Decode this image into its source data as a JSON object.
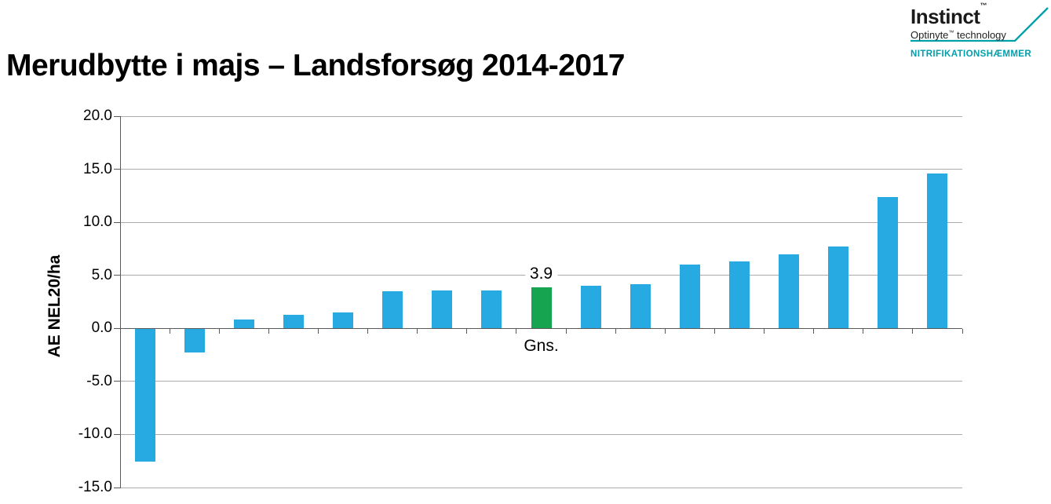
{
  "slide": {
    "title": "Merudbytte i majs – Landsforsøg 2014-2017"
  },
  "logo": {
    "brand": "Instinct",
    "brand_trademark": "™",
    "tech_brand": "Optinyte",
    "tech_trademark": "™",
    "tech_suffix": " technology",
    "tagline": "NITRIFIKATIONSHÆMMER",
    "accent_color": "#00A0AB"
  },
  "chart_data": {
    "type": "bar",
    "title": "Merudbytte i majs – Landsforsøg 2014-2017",
    "xlabel": "",
    "ylabel": "AE NEL20/ha",
    "ylim": [
      -15,
      20
    ],
    "grid": true,
    "legend": "none",
    "yticks": [
      "20.0",
      "15.0",
      "10.0",
      "5.0",
      "0.0",
      "-5.0",
      "-10.0",
      "-15.0"
    ],
    "ytick_values": [
      20,
      15,
      10,
      5,
      0,
      -5,
      -10,
      -15
    ],
    "values": [
      -12.5,
      -2.2,
      0.8,
      1.3,
      1.5,
      3.5,
      3.6,
      3.6,
      3.9,
      4.0,
      4.2,
      6.0,
      6.3,
      7.0,
      7.7,
      12.4,
      14.6
    ],
    "categories": [
      "",
      "",
      "",
      "",
      "",
      "",
      "",
      "",
      "Gns.",
      "",
      "",
      "",
      "",
      "",
      "",
      "",
      ""
    ],
    "highlight_index": 8,
    "annotation": {
      "value_label": "3.9",
      "category_label": "Gns."
    },
    "bar_color": "#27AAE1",
    "highlight_color": "#16A450"
  }
}
